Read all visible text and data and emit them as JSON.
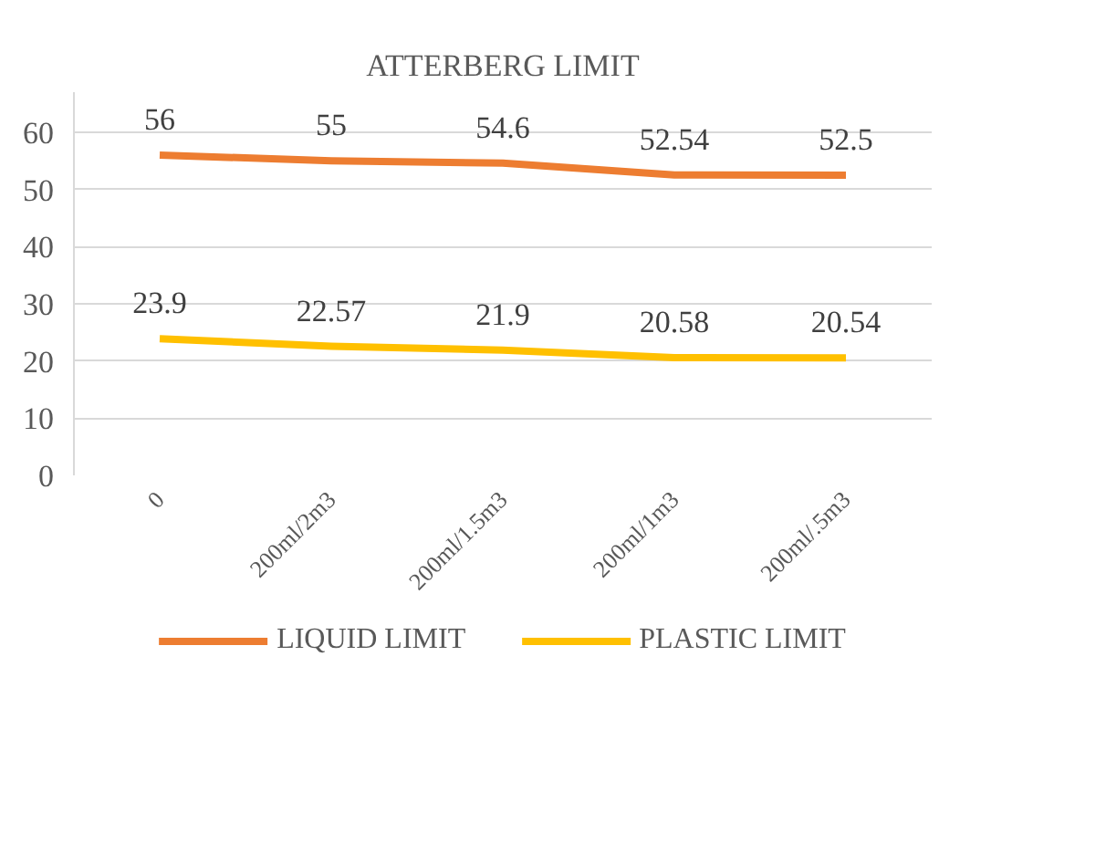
{
  "chart_data": {
    "type": "line",
    "title": "ATTERBERG LIMIT",
    "categories": [
      "0",
      "200ml/2m3",
      "200ml/1.5m3",
      "200ml/1m3",
      "200ml/.5m3"
    ],
    "series": [
      {
        "name": "LIQUID LIMIT",
        "color": "#ed7d31",
        "values": [
          56,
          55,
          54.6,
          52.54,
          52.5
        ]
      },
      {
        "name": "PLASTIC LIMIT",
        "color": "#ffc000",
        "values": [
          23.9,
          22.57,
          21.9,
          20.58,
          20.54
        ]
      }
    ],
    "ylim": [
      0,
      67
    ],
    "yticks": [
      0,
      10,
      20,
      30,
      40,
      50,
      60
    ],
    "grid": "y",
    "legend": "bottom",
    "data_labels": true,
    "marker": "none",
    "line_style": "solid"
  }
}
